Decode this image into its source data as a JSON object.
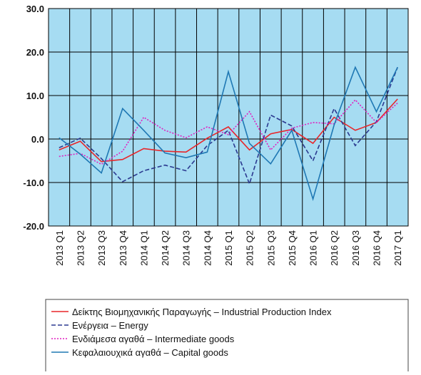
{
  "chart_data": {
    "type": "line",
    "categories": [
      "2013 Q1",
      "2013 Q2",
      "2013 Q3",
      "2013 Q4",
      "2014 Q1",
      "2014 Q2",
      "2014 Q3",
      "2014 Q4",
      "2015 Q1",
      "2015 Q2",
      "2015 Q3",
      "2015 Q4",
      "2016 Q1",
      "2016 Q2",
      "2016 Q3",
      "2016 Q4",
      "2017 Q1"
    ],
    "series": [
      {
        "name": "Δείκτης Βιομηχανικής Παραγωγής – Industrial Production Index",
        "color": "#e8262a",
        "dash": "solid",
        "values": [
          -2.5,
          -0.5,
          -5.2,
          -4.7,
          -2.2,
          -2.8,
          -3.0,
          0.2,
          2.8,
          -2.5,
          1.2,
          2.2,
          -1.0,
          5.0,
          2.0,
          3.8,
          9.2
        ]
      },
      {
        "name": "Ενέργεια – Energy",
        "color": "#2b3990",
        "dash": "dashed",
        "values": [
          -2.0,
          0.2,
          -4.5,
          -9.8,
          -7.3,
          -6.0,
          -7.3,
          -1.5,
          2.0,
          -10.3,
          5.5,
          3.0,
          -5.0,
          7.0,
          -1.5,
          4.0,
          16.5
        ]
      },
      {
        "name": "Ενδιάμεσα αγαθά – Intermediate goods",
        "color": "#e020c0",
        "dash": "dotted",
        "values": [
          -4.0,
          -3.3,
          -5.8,
          -2.8,
          5.0,
          2.0,
          0.3,
          2.8,
          1.0,
          6.3,
          -2.5,
          2.5,
          3.8,
          3.5,
          9.0,
          3.8,
          8.3
        ]
      },
      {
        "name": "Κεφαλαιουχικά αγαθά – Capital goods",
        "color": "#1f78b4",
        "dash": "solid",
        "values": [
          0.3,
          -3.5,
          -7.8,
          7.0,
          2.0,
          -3.2,
          -4.3,
          -3.0,
          15.5,
          -1.0,
          -5.7,
          2.0,
          -13.8,
          3.2,
          16.5,
          6.3,
          16.5
        ]
      }
    ],
    "ylim": [
      -20,
      30
    ],
    "yticks": [
      {
        "value": -20,
        "label": "-20.0"
      },
      {
        "value": -10,
        "label": "-10.0"
      },
      {
        "value": 0,
        "label": "0.0"
      },
      {
        "value": 10,
        "label": "10.0"
      },
      {
        "value": 20,
        "label": "20.0"
      },
      {
        "value": 30,
        "label": "30.0"
      }
    ],
    "grid": true,
    "background": "#a6dcf2"
  }
}
